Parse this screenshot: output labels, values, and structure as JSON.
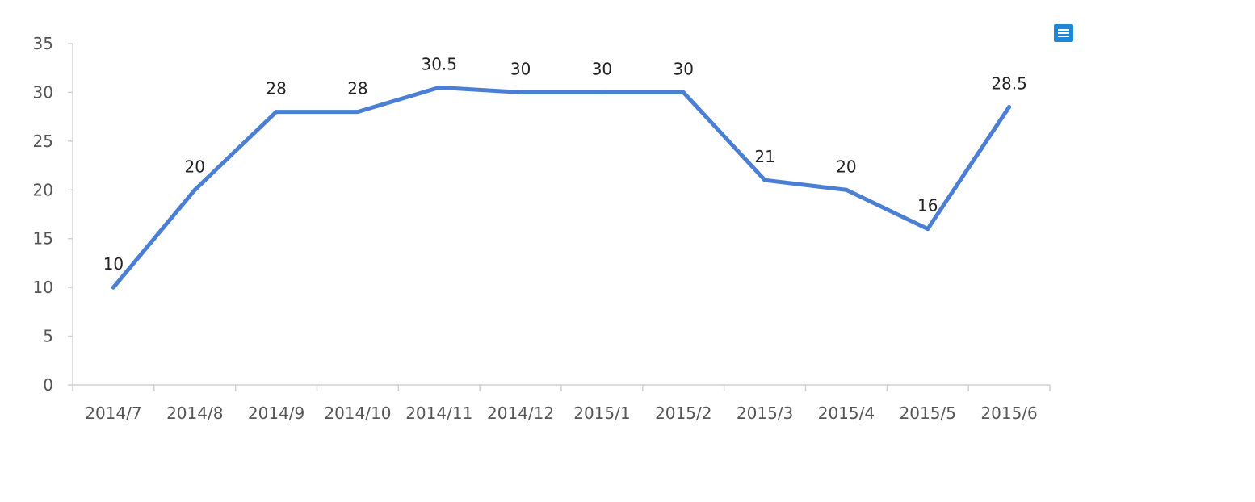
{
  "chart_data": {
    "type": "line",
    "title": "",
    "xlabel": "",
    "ylabel": "",
    "categories": [
      "2014/7",
      "2014/8",
      "2014/9",
      "2014/10",
      "2014/11",
      "2014/12",
      "2015/1",
      "2015/2",
      "2015/3",
      "2015/4",
      "2015/5",
      "2015/6"
    ],
    "series": [
      {
        "values": [
          10,
          20,
          28,
          28,
          30.5,
          30,
          30,
          30,
          21,
          20,
          16,
          28.5
        ],
        "color": "#4a7fd4"
      }
    ],
    "data_labels": [
      "10",
      "20",
      "28",
      "28",
      "30.5",
      "30",
      "30",
      "30",
      "21",
      "20",
      "16",
      "28.5"
    ],
    "yticks": [
      "0",
      "5",
      "10",
      "15",
      "20",
      "25",
      "30",
      "35"
    ],
    "ylim": [
      0,
      35
    ],
    "grid": false,
    "legend": "none"
  },
  "toolbar": {
    "menu_icon": "menu-icon"
  }
}
